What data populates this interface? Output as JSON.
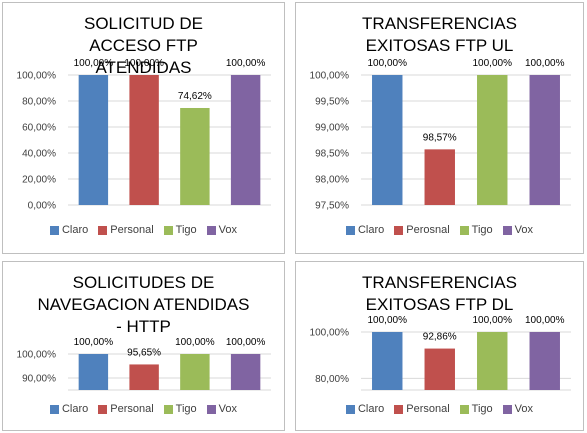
{
  "chart_data": [
    {
      "type": "bar",
      "title": "SOLICITUD DE ACCESO FTP ATENDIDAS",
      "categories": [
        "Claro",
        "Personal",
        "Tigo",
        "Vox"
      ],
      "values": [
        100.0,
        100.0,
        74.62,
        100.0
      ],
      "data_labels": [
        "100,00%",
        "100,00%",
        "74,62%",
        "100,00%"
      ],
      "legend": [
        "Claro",
        "Personal",
        "Tigo",
        "Vox"
      ],
      "ylim": [
        0,
        100
      ],
      "yticks": [
        0,
        20,
        40,
        60,
        80,
        100
      ],
      "ytick_labels": [
        "0,00%",
        "20,00%",
        "40,00%",
        "60,00%",
        "80,00%",
        "100,00%"
      ],
      "colors": [
        "#4f81bd",
        "#c0504d",
        "#9bbb59",
        "#8064a2"
      ],
      "grid": true,
      "legend_position": "bottom"
    },
    {
      "type": "bar",
      "title": "TRANSFERENCIAS EXITOSAS FTP UL",
      "categories": [
        "Claro",
        "Perosnal",
        "Tigo",
        "Vox"
      ],
      "values": [
        100.0,
        98.57,
        100.0,
        100.0
      ],
      "data_labels": [
        "100,00%",
        "98,57%",
        "100,00%",
        "100,00%"
      ],
      "legend": [
        "Claro",
        "Perosnal",
        "Tigo",
        "Vox"
      ],
      "ylim": [
        97.5,
        100
      ],
      "yticks": [
        97.5,
        98.0,
        98.5,
        99.0,
        99.5,
        100.0
      ],
      "ytick_labels": [
        "97,50%",
        "98,00%",
        "98,50%",
        "99,00%",
        "99,50%",
        "100,00%"
      ],
      "colors": [
        "#4f81bd",
        "#c0504d",
        "#9bbb59",
        "#8064a2"
      ],
      "grid": true,
      "legend_position": "bottom"
    },
    {
      "type": "bar",
      "title": "SOLICITUDES DE NAVEGACION ATENDIDAS - HTTP",
      "categories": [
        "Claro",
        "Personal",
        "Tigo",
        "Vox"
      ],
      "values": [
        100.0,
        95.65,
        100.0,
        100.0
      ],
      "data_labels": [
        "100,00%",
        "95,65%",
        "100,00%",
        "100,00%"
      ],
      "legend": [
        "Claro",
        "Personal",
        "Tigo",
        "Vox"
      ],
      "ylim": [
        85,
        100
      ],
      "yticks": [
        90,
        100
      ],
      "ytick_labels": [
        "90,00%",
        "100,00%"
      ],
      "colors": [
        "#4f81bd",
        "#c0504d",
        "#9bbb59",
        "#8064a2"
      ],
      "grid": true,
      "legend_position": "bottom"
    },
    {
      "type": "bar",
      "title": "TRANSFERENCIAS EXITOSAS FTP DL",
      "categories": [
        "Claro",
        "Personal",
        "Tigo",
        "Vox"
      ],
      "values": [
        100.0,
        92.86,
        100.0,
        100.0
      ],
      "data_labels": [
        "100,00%",
        "92,86%",
        "100,00%",
        "100,00%"
      ],
      "legend": [
        "Claro",
        "Personal",
        "Tigo",
        "Vox"
      ],
      "ylim": [
        75,
        100
      ],
      "yticks": [
        80,
        100
      ],
      "ytick_labels": [
        "80,00%",
        "100,00%"
      ],
      "colors": [
        "#4f81bd",
        "#c0504d",
        "#9bbb59",
        "#8064a2"
      ],
      "grid": true,
      "legend_position": "bottom"
    }
  ]
}
